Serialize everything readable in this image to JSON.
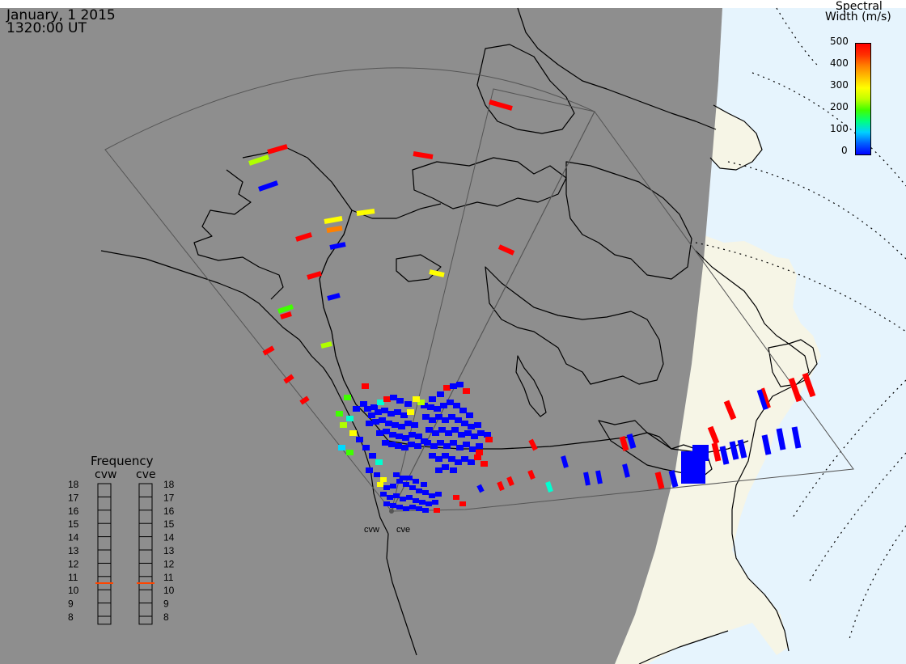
{
  "header": {
    "date": "January, 1 2015",
    "time": "1320:00 UT"
  },
  "colorbar": {
    "title_line1": "Spectral",
    "title_line2": "Width (m/s)",
    "ticks": [
      "500",
      "400",
      "300",
      "200",
      "100",
      "0"
    ],
    "gradient": [
      "#0000ff",
      "#0060ff",
      "#00d0ff",
      "#00ff80",
      "#40ff00",
      "#c0ff00",
      "#ffff00",
      "#ffc000",
      "#ff8000",
      "#ff3000",
      "#ff0000"
    ]
  },
  "radars": [
    {
      "code": "cvw",
      "freq_mhz": 10.5
    },
    {
      "code": "cve",
      "freq_mhz": 10.5
    }
  ],
  "frequency_panel": {
    "title": "Frequency",
    "scale": [
      "18",
      "17",
      "16",
      "15",
      "14",
      "13",
      "12",
      "11",
      "10",
      "9",
      "8"
    ]
  },
  "colors": {
    "night": "#8e8e8e",
    "day_land": "#f6f5e6",
    "day_ocean": "#e6f4fd",
    "coast": "#000000",
    "fov": "#555555",
    "freq_marker": "#ff4500"
  },
  "layers": {
    "terminator": "day-night",
    "fov_outline": true,
    "geomagnetic_grid": true
  }
}
